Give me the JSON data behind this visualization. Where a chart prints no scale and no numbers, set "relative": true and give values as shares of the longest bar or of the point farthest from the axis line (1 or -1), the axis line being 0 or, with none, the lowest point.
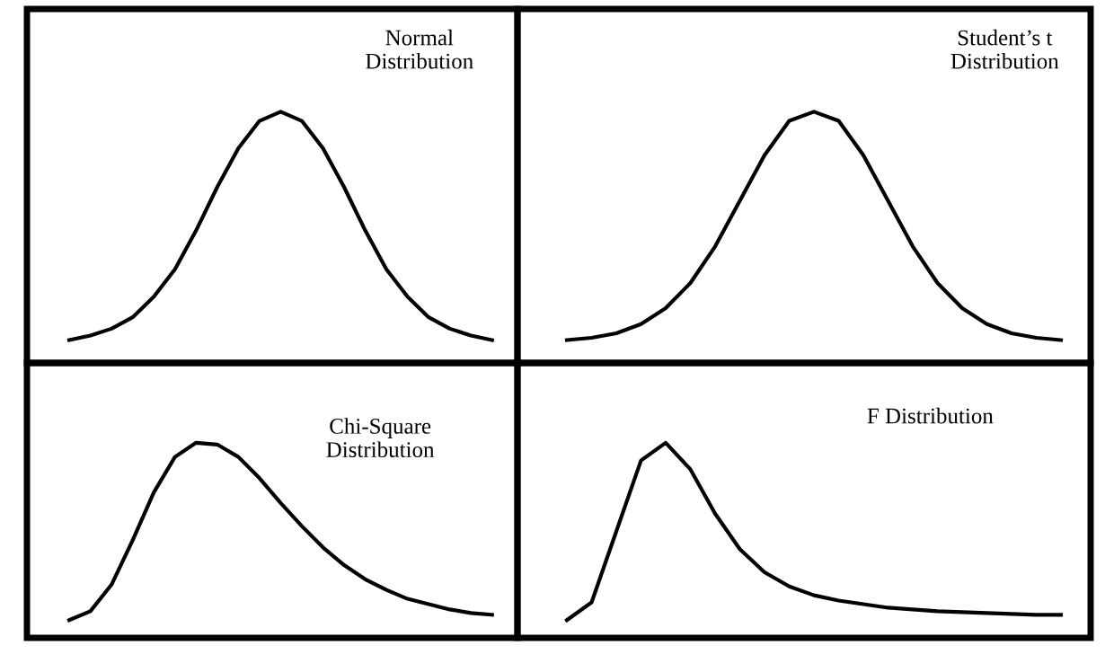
{
  "chart_data": [
    {
      "type": "line",
      "relative": true,
      "categories": [
        null,
        null,
        null,
        null,
        null,
        null,
        null,
        null,
        null,
        null,
        null,
        null,
        null,
        null,
        null,
        null,
        null,
        null,
        null,
        null,
        null
      ],
      "series": [
        {
          "color": "#000000",
          "values": [
            0,
            0.02,
            0.05,
            0.1,
            0.19,
            0.31,
            0.48,
            0.67,
            0.84,
            0.96,
            1,
            0.96,
            0.84,
            0.67,
            0.48,
            0.31,
            0.19,
            0.1,
            0.05,
            0.02,
            0
          ]
        }
      ],
      "annotations": [
        "Normal\nDistribution"
      ],
      "marker": "none",
      "line_style": "solid"
    },
    {
      "type": "line",
      "relative": true,
      "categories": [
        null,
        null,
        null,
        null,
        null,
        null,
        null,
        null,
        null,
        null,
        null,
        null,
        null,
        null,
        null,
        null,
        null,
        null,
        null,
        null,
        null
      ],
      "series": [
        {
          "color": "#000000",
          "values": [
            0,
            0.01,
            0.03,
            0.07,
            0.14,
            0.25,
            0.41,
            0.61,
            0.81,
            0.96,
            1,
            0.96,
            0.81,
            0.61,
            0.41,
            0.25,
            0.14,
            0.07,
            0.03,
            0.01,
            0
          ]
        }
      ],
      "annotations": [
        "Student’s t\nDistribution"
      ],
      "marker": "none",
      "line_style": "solid"
    },
    {
      "type": "line",
      "relative": true,
      "categories": [
        null,
        null,
        null,
        null,
        null,
        null,
        null,
        null,
        null,
        null,
        null,
        null,
        null,
        null,
        null,
        null,
        null,
        null,
        null,
        null,
        null
      ],
      "series": [
        {
          "color": "#000000",
          "values": [
            0,
            0.05,
            0.2,
            0.45,
            0.72,
            0.92,
            1,
            0.99,
            0.92,
            0.8,
            0.66,
            0.53,
            0.41,
            0.31,
            0.23,
            0.17,
            0.12,
            0.09,
            0.06,
            0.04,
            0.03
          ]
        }
      ],
      "annotations": [
        "Chi-Square\nDistribution"
      ],
      "marker": "none",
      "line_style": "solid"
    },
    {
      "type": "line",
      "relative": true,
      "categories": [
        null,
        null,
        null,
        null,
        null,
        null,
        null,
        null,
        null,
        null,
        null,
        null,
        null,
        null,
        null,
        null,
        null,
        null,
        null,
        null,
        null
      ],
      "series": [
        {
          "color": "#000000",
          "values": [
            0,
            0.1,
            0.5,
            0.9,
            1,
            0.85,
            0.6,
            0.4,
            0.27,
            0.19,
            0.14,
            0.11,
            0.09,
            0.07,
            0.06,
            0.05,
            0.045,
            0.04,
            0.035,
            0.03,
            0.03
          ]
        }
      ],
      "annotations": [
        "F Distribution"
      ],
      "marker": "none",
      "line_style": "solid"
    }
  ]
}
